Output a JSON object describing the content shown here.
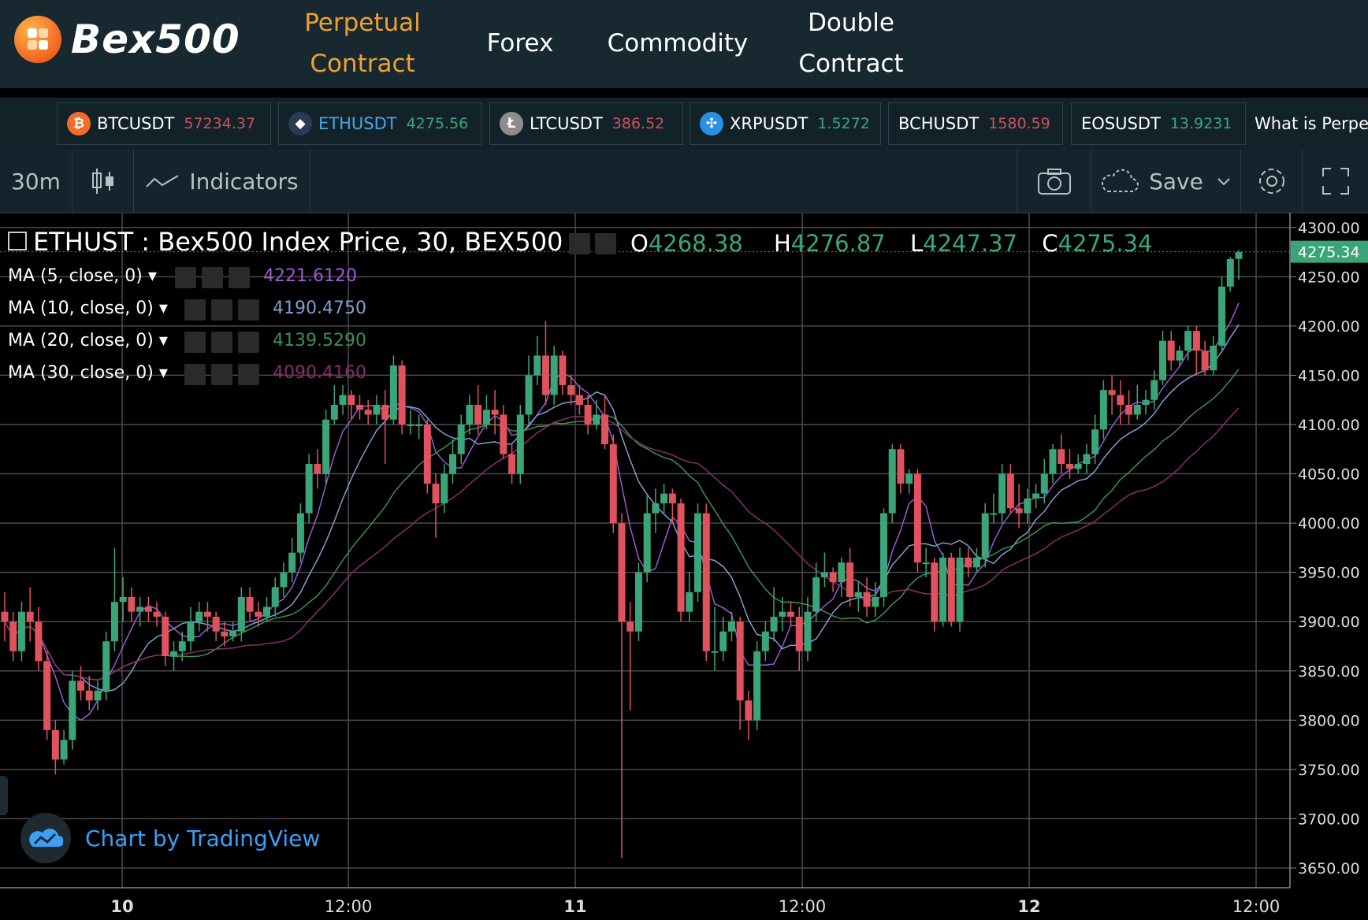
{
  "brand": {
    "name": "Bex500"
  },
  "nav": {
    "items": [
      {
        "label_line1": "Perpetual",
        "label_line2": "Contract",
        "active": true
      },
      {
        "label": "Forex"
      },
      {
        "label": "Commodity"
      },
      {
        "label_line1": "Double",
        "label_line2": "Contract"
      }
    ]
  },
  "ticker": {
    "items": [
      {
        "symbol": "BTCUSDT",
        "price": "57234.37",
        "direction": "down",
        "icon": "bitcoin-icon"
      },
      {
        "symbol": "ETHUSDT",
        "price": "4275.56",
        "direction": "up",
        "icon": "ethereum-icon"
      },
      {
        "symbol": "LTCUSDT",
        "price": "386.52",
        "direction": "down",
        "icon": "litecoin-icon"
      },
      {
        "symbol": "XRPUSDT",
        "price": "1.5272",
        "direction": "up",
        "icon": "ripple-icon"
      },
      {
        "symbol": "BCHUSDT",
        "price": "1580.59",
        "direction": "down"
      },
      {
        "symbol": "EOSUSDT",
        "price": "13.9231",
        "direction": "up"
      }
    ],
    "marquee_text": "What is Perpe"
  },
  "toolbar": {
    "interval": "30m",
    "indicators_label": "Indicators",
    "save_label": "Save"
  },
  "legend": {
    "title": "ETHUST : Bex500 Index Price, 30, BEX500",
    "o_label": "O",
    "o": "4268.38",
    "h_label": "H",
    "h": "4276.87",
    "l_label": "L",
    "l": "4247.37",
    "c_label": "C",
    "c": "4275.34",
    "studies": [
      {
        "label": "MA (5, close, 0)",
        "value": "4221.6120",
        "color": "#9b59d0"
      },
      {
        "label": "MA (10, close, 0)",
        "value": "4190.4750",
        "color": "#7f9fcf"
      },
      {
        "label": "MA (20, close, 0)",
        "value": "4139.5290",
        "color": "#3f8f4f"
      },
      {
        "label": "MA (30, close, 0)",
        "value": "4090.4160",
        "color": "#8a2d6e"
      }
    ]
  },
  "attribution": "Chart by TradingView",
  "colors": {
    "up": "#3ba57a",
    "down": "#e0525e",
    "accent": "#f0a030",
    "link": "#3aa0f5"
  },
  "chart_data": {
    "type": "candlestick",
    "symbol": "ETHUST",
    "interval": "30",
    "ylim": [
      3630,
      4315
    ],
    "y_ticks": [
      "4300.00",
      "4250.00",
      "4200.00",
      "4150.00",
      "4100.00",
      "4050.00",
      "4000.00",
      "3950.00",
      "3900.00",
      "3850.00",
      "3800.00",
      "3750.00",
      "3700.00",
      "3650.00"
    ],
    "x_ticks": [
      "10",
      "12:00",
      "11",
      "12:00",
      "12",
      "12:00"
    ],
    "last_price": "4275.34",
    "candles": [
      [
        3910,
        3900,
        3930,
        3880
      ],
      [
        3900,
        3870,
        3910,
        3860
      ],
      [
        3870,
        3910,
        3920,
        3860
      ],
      [
        3910,
        3900,
        3935,
        3880
      ],
      [
        3900,
        3860,
        3915,
        3850
      ],
      [
        3860,
        3790,
        3870,
        3780
      ],
      [
        3790,
        3760,
        3800,
        3745
      ],
      [
        3760,
        3780,
        3790,
        3755
      ],
      [
        3780,
        3840,
        3850,
        3770
      ],
      [
        3840,
        3830,
        3855,
        3820
      ],
      [
        3830,
        3820,
        3845,
        3810
      ],
      [
        3820,
        3830,
        3840,
        3810
      ],
      [
        3830,
        3880,
        3890,
        3820
      ],
      [
        3880,
        3920,
        3975,
        3870
      ],
      [
        3920,
        3925,
        3945,
        3900
      ],
      [
        3925,
        3910,
        3935,
        3900
      ],
      [
        3910,
        3915,
        3925,
        3895
      ],
      [
        3915,
        3910,
        3925,
        3900
      ],
      [
        3910,
        3905,
        3920,
        3895
      ],
      [
        3905,
        3865,
        3910,
        3855
      ],
      [
        3865,
        3870,
        3880,
        3850
      ],
      [
        3870,
        3880,
        3890,
        3860
      ],
      [
        3880,
        3900,
        3915,
        3870
      ],
      [
        3900,
        3910,
        3920,
        3890
      ],
      [
        3910,
        3905,
        3920,
        3890
      ],
      [
        3905,
        3890,
        3910,
        3880
      ],
      [
        3890,
        3885,
        3900,
        3875
      ],
      [
        3885,
        3890,
        3900,
        3880
      ],
      [
        3890,
        3925,
        3935,
        3880
      ],
      [
        3925,
        3910,
        3935,
        3900
      ],
      [
        3910,
        3905,
        3920,
        3895
      ],
      [
        3905,
        3915,
        3925,
        3900
      ],
      [
        3915,
        3935,
        3945,
        3905
      ],
      [
        3935,
        3950,
        3960,
        3925
      ],
      [
        3950,
        3970,
        3985,
        3940
      ],
      [
        3970,
        4010,
        4020,
        3960
      ],
      [
        4010,
        4060,
        4070,
        4000
      ],
      [
        4060,
        4050,
        4075,
        4035
      ],
      [
        4050,
        4105,
        4115,
        4040
      ],
      [
        4105,
        4120,
        4140,
        4100
      ],
      [
        4120,
        4130,
        4140,
        4110
      ],
      [
        4130,
        4120,
        4135,
        4105
      ],
      [
        4120,
        4115,
        4130,
        4105
      ],
      [
        4115,
        4110,
        4125,
        4100
      ],
      [
        4110,
        4120,
        4130,
        4100
      ],
      [
        4120,
        4105,
        4135,
        4060
      ],
      [
        4105,
        4160,
        4170,
        4100
      ],
      [
        4160,
        4100,
        4165,
        4090
      ],
      [
        4100,
        4100,
        4115,
        4090
      ],
      [
        4100,
        4100,
        4110,
        4085
      ],
      [
        4100,
        4040,
        4105,
        4030
      ],
      [
        4040,
        4020,
        4050,
        3985
      ],
      [
        4020,
        4050,
        4060,
        4010
      ],
      [
        4050,
        4070,
        4085,
        4040
      ],
      [
        4070,
        4100,
        4110,
        4060
      ],
      [
        4100,
        4120,
        4130,
        4090
      ],
      [
        4120,
        4100,
        4140,
        4090
      ],
      [
        4100,
        4115,
        4130,
        4095
      ],
      [
        4115,
        4110,
        4135,
        4090
      ],
      [
        4110,
        4070,
        4120,
        4065
      ],
      [
        4070,
        4050,
        4080,
        4040
      ],
      [
        4050,
        4110,
        4120,
        4040
      ],
      [
        4110,
        4150,
        4170,
        4100
      ],
      [
        4150,
        4170,
        4190,
        4140
      ],
      [
        4170,
        4130,
        4205,
        4120
      ],
      [
        4130,
        4170,
        4180,
        4120
      ],
      [
        4170,
        4140,
        4175,
        4130
      ],
      [
        4140,
        4130,
        4150,
        4120
      ],
      [
        4130,
        4120,
        4140,
        4110
      ],
      [
        4120,
        4100,
        4130,
        4090
      ],
      [
        4100,
        4110,
        4125,
        4095
      ],
      [
        4110,
        4080,
        4130,
        4075
      ],
      [
        4080,
        4000,
        4090,
        3990
      ],
      [
        4000,
        3900,
        4010,
        3660
      ],
      [
        3900,
        3890,
        3920,
        3810
      ],
      [
        3890,
        3950,
        3960,
        3880
      ],
      [
        3950,
        4010,
        4030,
        3940
      ],
      [
        4010,
        4020,
        4035,
        3990
      ],
      [
        4020,
        4030,
        4040,
        4010
      ],
      [
        4030,
        4020,
        4035,
        4000
      ],
      [
        4020,
        3910,
        4025,
        3900
      ],
      [
        3910,
        3930,
        3950,
        3900
      ],
      [
        3930,
        4010,
        4020,
        3920
      ],
      [
        4010,
        3870,
        4020,
        3860
      ],
      [
        3870,
        3870,
        3915,
        3850
      ],
      [
        3870,
        3890,
        3905,
        3860
      ],
      [
        3890,
        3900,
        3910,
        3880
      ],
      [
        3900,
        3820,
        3905,
        3790
      ],
      [
        3820,
        3800,
        3830,
        3780
      ],
      [
        3800,
        3870,
        3880,
        3790
      ],
      [
        3870,
        3890,
        3900,
        3860
      ],
      [
        3890,
        3905,
        3935,
        3880
      ],
      [
        3905,
        3910,
        3925,
        3890
      ],
      [
        3910,
        3905,
        3920,
        3895
      ],
      [
        3905,
        3870,
        3915,
        3850
      ],
      [
        3870,
        3910,
        3925,
        3860
      ],
      [
        3910,
        3945,
        3960,
        3900
      ],
      [
        3945,
        3950,
        3970,
        3935
      ],
      [
        3950,
        3940,
        3955,
        3930
      ],
      [
        3940,
        3960,
        3965,
        3925
      ],
      [
        3960,
        3925,
        3975,
        3915
      ],
      [
        3925,
        3930,
        3940,
        3910
      ],
      [
        3930,
        3915,
        3945,
        3905
      ],
      [
        3915,
        3925,
        3940,
        3905
      ],
      [
        3925,
        4010,
        4015,
        3915
      ],
      [
        4010,
        4075,
        4080,
        4000
      ],
      [
        4075,
        4040,
        4080,
        4030
      ],
      [
        4040,
        4050,
        4055,
        4030
      ],
      [
        4050,
        3960,
        4055,
        3950
      ],
      [
        3960,
        3960,
        3975,
        3945
      ],
      [
        3960,
        3900,
        3965,
        3890
      ],
      [
        3900,
        3965,
        3970,
        3895
      ],
      [
        3965,
        3900,
        3970,
        3895
      ],
      [
        3900,
        3965,
        3975,
        3890
      ],
      [
        3965,
        3955,
        3975,
        3945
      ],
      [
        3955,
        3965,
        3975,
        3950
      ],
      [
        3965,
        4010,
        4020,
        3955
      ],
      [
        4010,
        4010,
        4030,
        4000
      ],
      [
        4010,
        4050,
        4060,
        4000
      ],
      [
        4050,
        4015,
        4060,
        4010
      ],
      [
        4015,
        4010,
        4040,
        3995
      ],
      [
        4010,
        4025,
        4035,
        4000
      ],
      [
        4025,
        4030,
        4040,
        4015
      ],
      [
        4030,
        4050,
        4065,
        4020
      ],
      [
        4050,
        4075,
        4080,
        4040
      ],
      [
        4075,
        4060,
        4090,
        4050
      ],
      [
        4060,
        4055,
        4075,
        4045
      ],
      [
        4055,
        4060,
        4070,
        4050
      ],
      [
        4060,
        4070,
        4080,
        4050
      ],
      [
        4070,
        4095,
        4110,
        4060
      ],
      [
        4095,
        4135,
        4145,
        4085
      ],
      [
        4135,
        4130,
        4150,
        4110
      ],
      [
        4130,
        4120,
        4145,
        4100
      ],
      [
        4120,
        4110,
        4135,
        4100
      ],
      [
        4110,
        4120,
        4140,
        4105
      ],
      [
        4120,
        4125,
        4135,
        4110
      ],
      [
        4125,
        4145,
        4155,
        4115
      ],
      [
        4145,
        4185,
        4195,
        4140
      ],
      [
        4185,
        4165,
        4195,
        4155
      ],
      [
        4165,
        4175,
        4180,
        4160
      ],
      [
        4175,
        4195,
        4200,
        4165
      ],
      [
        4195,
        4175,
        4200,
        4150
      ],
      [
        4175,
        4155,
        4185,
        4150
      ],
      [
        4155,
        4180,
        4190,
        4150
      ],
      [
        4180,
        4240,
        4250,
        4175
      ],
      [
        4240,
        4268,
        4270,
        4235
      ],
      [
        4268,
        4275,
        4277,
        4247
      ]
    ],
    "moving_averages": [
      {
        "period": 5,
        "color": "#9b59d0"
      },
      {
        "period": 10,
        "color": "#7f9fcf"
      },
      {
        "period": 20,
        "color": "#3f8f4f"
      },
      {
        "period": 30,
        "color": "#8a2d6e"
      }
    ]
  }
}
